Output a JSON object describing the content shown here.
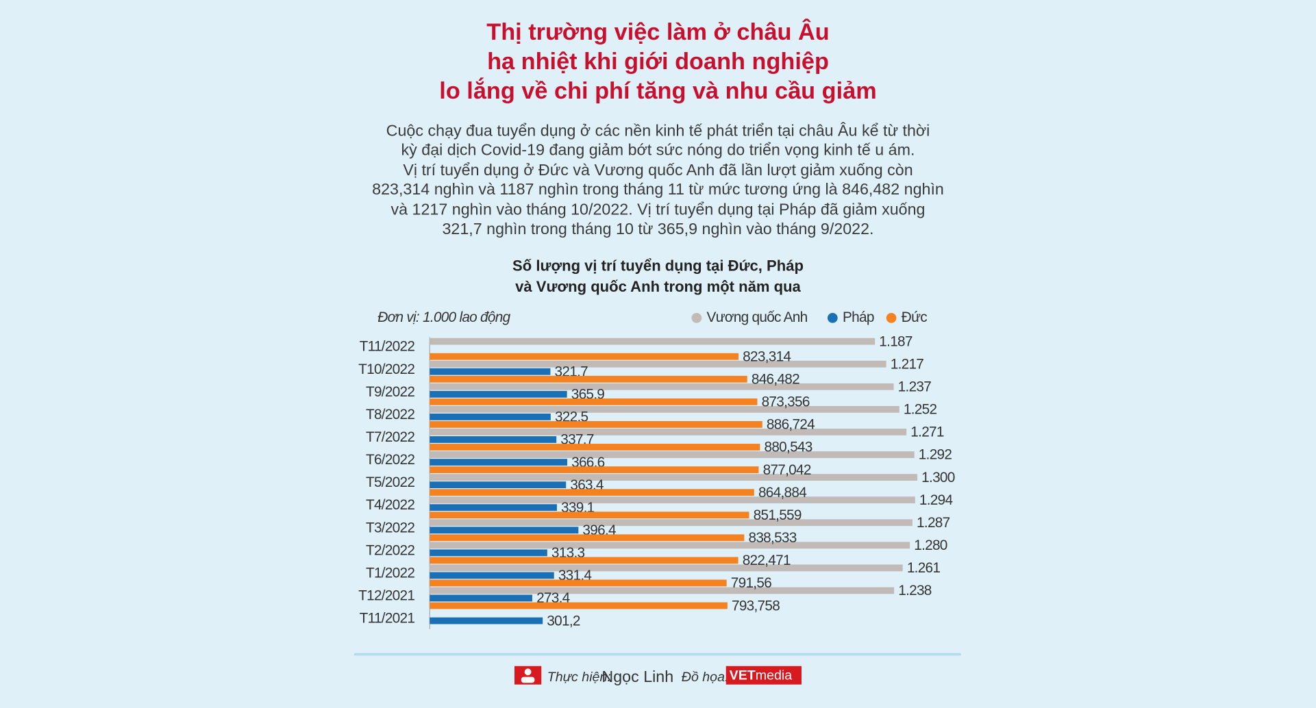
{
  "header": {
    "title": [
      "Thị trường việc làm ở châu Âu",
      "hạ nhiệt khi giới doanh nghiệp",
      "lo lắng về chi phí tăng và nhu cầu giảm"
    ],
    "description": [
      "Cuộc chạy đua tuyển dụng ở các nền kinh tế phát triển tại châu Âu kể từ thời",
      "kỳ đại dịch Covid-19 đang giảm bớt sức nóng do triển vọng kinh tế u ám.",
      "Vị trí tuyển dụng ở Đức và Vương quốc Anh đã lần lượt giảm xuống còn",
      "823,314 nghìn và 1187 nghìn trong tháng 11 từ mức tương ứng là 846,482 nghìn",
      "và 1217 nghìn vào tháng 10/2022. Vị trí tuyển dụng tại Pháp đã giảm xuống",
      "321,7 nghìn trong tháng 10 từ 365,9 nghìn vào tháng 9/2022."
    ]
  },
  "chart_data": {
    "type": "hbar",
    "title": [
      "Số lượng vị trí tuyển dụng tại Đức, Pháp",
      "và Vương quốc Anh trong một năm qua"
    ],
    "unit_note": "Đơn vị: 1.000 lao động",
    "categories": [
      "T11/2022",
      "T10/2022",
      "T9/2022",
      "T8/2022",
      "T7/2022",
      "T6/2022",
      "T5/2022",
      "T4/2022",
      "T3/2022",
      "T2/2022",
      "T1/2022",
      "T12/2021",
      "T11/2021"
    ],
    "xlim": [
      0,
      1300
    ],
    "series": [
      {
        "name": "Vương quốc Anh",
        "color": "#c1bab7",
        "values": [
          1187,
          1217,
          1237,
          1252,
          1271,
          1292,
          1300,
          1294,
          1287,
          1280,
          1261,
          1238,
          null
        ],
        "value_labels": [
          "1.187",
          "1.217",
          "1.237",
          "1.252",
          "1.271",
          "1.292",
          "1.300",
          "1.294",
          "1.287",
          "1.280",
          "1.261",
          "1.238",
          null
        ]
      },
      {
        "name": "Pháp",
        "color": "#1b6fb5",
        "values": [
          null,
          321.7,
          365.9,
          322.5,
          337.7,
          366.6,
          363.4,
          339.1,
          396.4,
          313.3,
          331.4,
          273.4,
          301.2
        ],
        "value_labels": [
          null,
          "321,7",
          "365,9",
          "322,5",
          "337,7",
          "366,6",
          "363,4",
          "339,1",
          "396,4",
          "313,3",
          "331,4",
          "273,4",
          "301,2"
        ]
      },
      {
        "name": "Đức",
        "color": "#f58220",
        "values": [
          823.314,
          846.482,
          873.356,
          886.724,
          880.543,
          877.042,
          864.884,
          851.559,
          838.533,
          822.471,
          791.56,
          793.758,
          null
        ],
        "value_labels": [
          "823,314",
          "846,482",
          "873,356",
          "886,724",
          "880,543",
          "877,042",
          "864,884",
          "851,559",
          "838,533",
          "822,471",
          "791,56",
          "793,758",
          null
        ]
      }
    ]
  },
  "footer": {
    "credit_label": "Thực hiện:",
    "author": "Ngọc Linh",
    "graphics_label": "Đồ họa:",
    "logo_bold": "VET",
    "logo_rest": "media"
  }
}
